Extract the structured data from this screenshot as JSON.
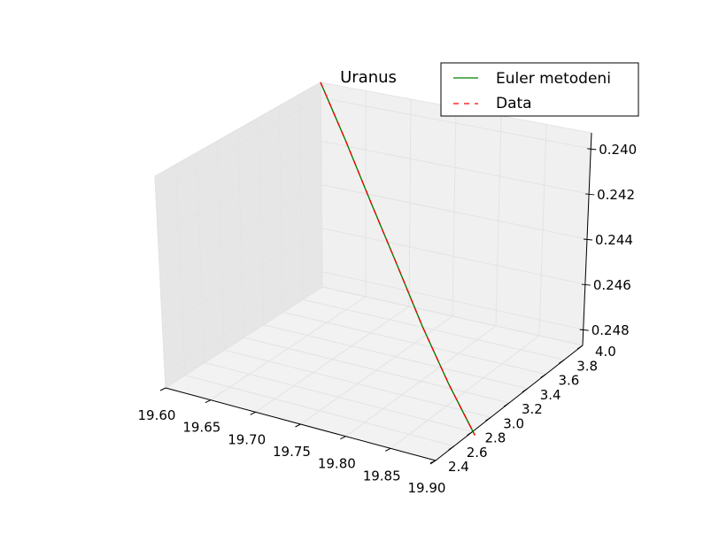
{
  "chart_data": {
    "type": "line",
    "projection": "3d",
    "title": "Uranus",
    "xlabel": "",
    "ylabel": "",
    "zlabel": "",
    "xlim": [
      19.6,
      19.9
    ],
    "ylim": [
      2.4,
      4.0
    ],
    "zlim": [
      0.2393,
      0.2487
    ],
    "z_axis_inverted": true,
    "grid": true,
    "legend_position": "top-right",
    "x_ticks": [
      "19.60",
      "19.65",
      "19.70",
      "19.75",
      "19.80",
      "19.85",
      "19.90"
    ],
    "y_ticks": [
      "2.4",
      "2.6",
      "2.8",
      "3.0",
      "3.2",
      "3.4",
      "3.6",
      "3.8",
      "4.0"
    ],
    "z_ticks": [
      "0.240",
      "0.242",
      "0.244",
      "0.246",
      "0.248"
    ],
    "series": [
      {
        "name": "Euler metodeni",
        "color": "#008000",
        "style": "solid",
        "points": [
          [
            19.6,
            4.0,
            0.2393
          ],
          [
            19.65,
            3.8,
            0.241
          ],
          [
            19.7,
            3.6,
            0.2428
          ],
          [
            19.75,
            3.4,
            0.2445
          ],
          [
            19.8,
            3.2,
            0.2462
          ],
          [
            19.85,
            3.0,
            0.2476
          ],
          [
            19.9,
            2.8,
            0.2487
          ]
        ]
      },
      {
        "name": "Data",
        "color": "#ff0000",
        "style": "dashed",
        "points": [
          [
            19.6,
            4.0,
            0.2393
          ],
          [
            19.65,
            3.8,
            0.241
          ],
          [
            19.7,
            3.6,
            0.2428
          ],
          [
            19.75,
            3.4,
            0.2445
          ],
          [
            19.8,
            3.2,
            0.2462
          ],
          [
            19.85,
            3.0,
            0.2476
          ],
          [
            19.9,
            2.8,
            0.2487
          ]
        ]
      }
    ]
  }
}
